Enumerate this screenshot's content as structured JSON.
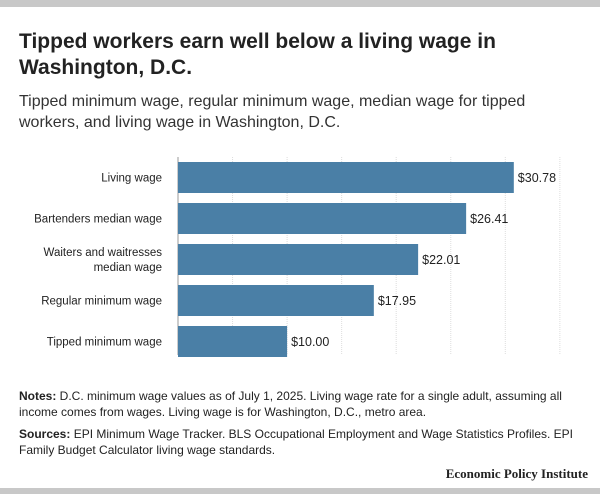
{
  "header": {
    "title": "Tipped workers earn well below a living wage in Washington, D.C.",
    "subtitle": "Tipped minimum wage, regular minimum wage, median wage for tipped workers, and living wage in Washington, D.C."
  },
  "chart_data": {
    "type": "bar",
    "orientation": "horizontal",
    "categories": [
      "Living wage",
      "Bartenders median wage",
      "Waiters and waitresses median wage",
      "Regular minimum wage",
      "Tipped minimum wage"
    ],
    "category_lines": [
      [
        "Living wage"
      ],
      [
        "Bartenders median wage"
      ],
      [
        "Waiters and waitresses",
        "median wage"
      ],
      [
        "Regular minimum wage"
      ],
      [
        "Tipped minimum wage"
      ]
    ],
    "values": [
      30.78,
      26.41,
      22.01,
      17.95,
      10.0
    ],
    "data_labels": [
      "$30.78",
      "$26.41",
      "$22.01",
      "$17.95",
      "$10.00"
    ],
    "xlim": [
      0,
      35
    ],
    "grid": true,
    "bar_color": "#4a7fa6",
    "grid_color": "#dddddd"
  },
  "notes": {
    "notes_label": "Notes:",
    "notes_text": " D.C. minimum wage values as of July 1, 2025. Living wage rate for a single adult, assuming all income comes from wages. Living wage is for Washington, D.C., metro area.",
    "sources_label": "Sources:",
    "sources_text": " EPI Minimum Wage Tracker. BLS Occupational Employment and Wage Statistics Profiles. EPI Family Budget Calculator living wage standards."
  },
  "footer": {
    "brand": "Economic Policy Institute"
  }
}
